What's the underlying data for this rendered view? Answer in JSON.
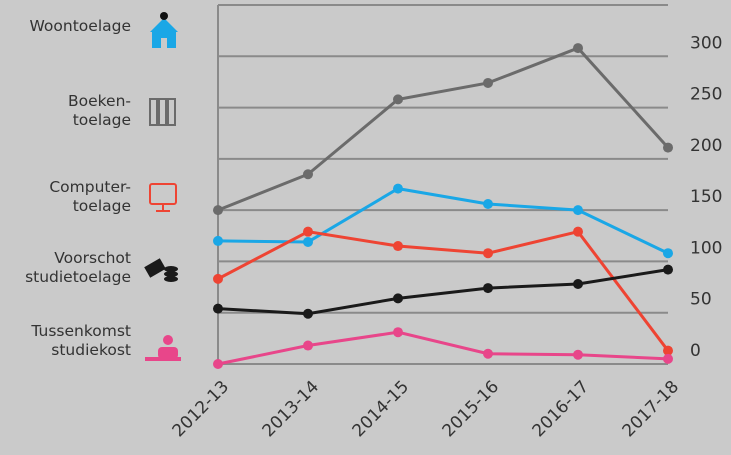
{
  "chart_data": {
    "type": "line",
    "categories": [
      "2012-13",
      "2013-14",
      "2014-15",
      "2015-16",
      "2016-17",
      "2017-18"
    ],
    "series": [
      {
        "name": "Woontoelage",
        "color": "#1aa7e6",
        "values": [
          120,
          119,
          171,
          156,
          150,
          108
        ]
      },
      {
        "name": "Boeken-\ntoelage",
        "color": "#6b6b6b",
        "values": [
          150,
          185,
          258,
          274,
          308,
          211
        ]
      },
      {
        "name": "Computer-\ntoelage",
        "color": "#ee4433",
        "values": [
          83,
          129,
          115,
          108,
          129,
          13
        ]
      },
      {
        "name": "Voorschot\nstudietoelage",
        "color": "#1a1a1a",
        "values": [
          54,
          49,
          64,
          74,
          78,
          92
        ]
      },
      {
        "name": "Tussenkomst\nstudiekost",
        "color": "#e8468a",
        "values": [
          0,
          18,
          31,
          10,
          9,
          5
        ]
      }
    ],
    "ylim": [
      0,
      350
    ],
    "yticks": [
      0,
      50,
      100,
      150,
      200,
      250,
      300
    ],
    "grid": true
  }
}
